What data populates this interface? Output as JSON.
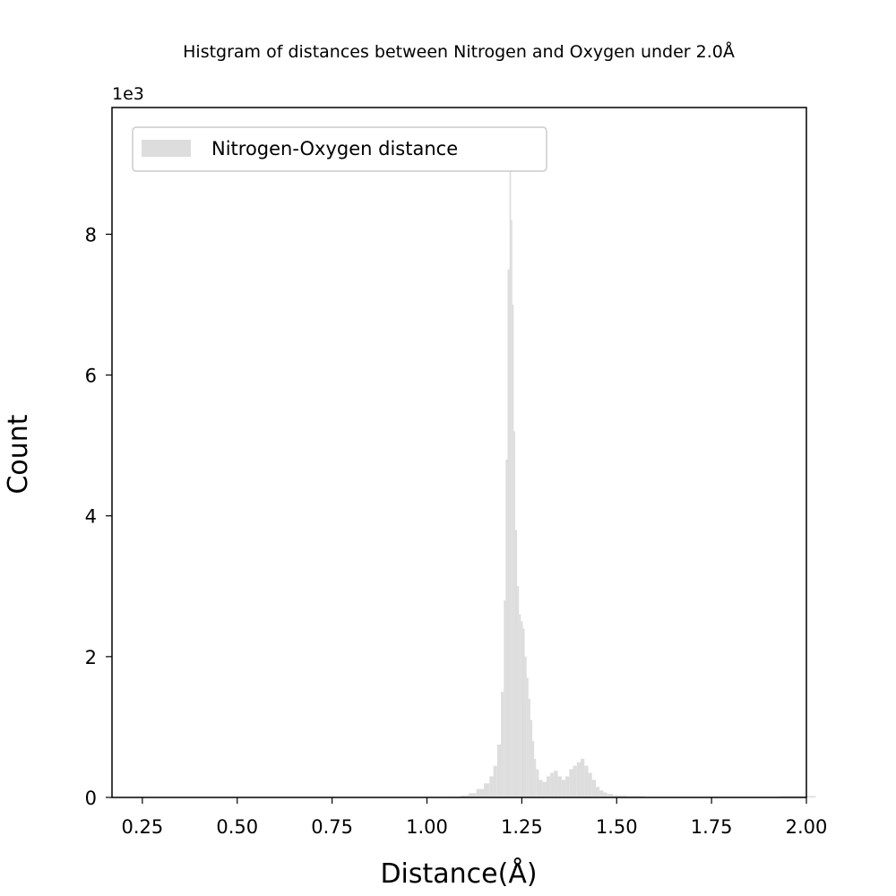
{
  "chart_data": {
    "type": "bar",
    "title": "Histgram of distances between Nitrogen and Oxygen under 2.0Å",
    "xlabel": "Distance(Å)",
    "ylabel": "Count",
    "y_multiplier_label": "1e3",
    "xlim": [
      0.17,
      2.0
    ],
    "ylim": [
      0,
      9.8
    ],
    "y_unit_scale": 1000,
    "x_ticks": [
      0.25,
      0.5,
      0.75,
      1.0,
      1.25,
      1.5,
      1.75,
      2.0
    ],
    "x_tick_labels": [
      "0.25",
      "0.50",
      "0.75",
      "1.00",
      "1.25",
      "1.50",
      "1.75",
      "2.00"
    ],
    "y_ticks": [
      0,
      2,
      4,
      6,
      8
    ],
    "y_tick_labels": [
      "0",
      "2",
      "4",
      "6",
      "8"
    ],
    "grid": false,
    "legend": {
      "placement": "top-left",
      "entries": [
        "Nitrogen-Oxygen distance"
      ]
    },
    "bar_color": "#dddddd",
    "series": [
      {
        "name": "Nitrogen-Oxygen distance",
        "x": [
          1.08,
          1.1,
          1.12,
          1.14,
          1.16,
          1.17,
          1.18,
          1.19,
          1.2,
          1.205,
          1.21,
          1.215,
          1.22,
          1.223,
          1.227,
          1.23,
          1.235,
          1.24,
          1.245,
          1.25,
          1.255,
          1.26,
          1.265,
          1.27,
          1.275,
          1.28,
          1.285,
          1.29,
          1.3,
          1.31,
          1.32,
          1.33,
          1.34,
          1.35,
          1.36,
          1.37,
          1.38,
          1.39,
          1.4,
          1.41,
          1.42,
          1.43,
          1.44,
          1.45,
          1.46,
          1.47,
          1.48,
          1.5,
          1.55,
          1.6,
          1.7,
          1.8,
          1.9,
          1.95,
          2.0
        ],
        "y": [
          0.01,
          0.03,
          0.06,
          0.12,
          0.2,
          0.3,
          0.45,
          0.75,
          1.5,
          2.8,
          4.8,
          7.5,
          8.9,
          8.2,
          7.0,
          5.2,
          3.8,
          3.0,
          2.6,
          2.5,
          2.4,
          2.0,
          1.7,
          1.4,
          1.1,
          0.8,
          0.55,
          0.4,
          0.25,
          0.22,
          0.3,
          0.35,
          0.38,
          0.3,
          0.25,
          0.3,
          0.4,
          0.45,
          0.5,
          0.55,
          0.45,
          0.35,
          0.25,
          0.15,
          0.1,
          0.07,
          0.05,
          0.03,
          0.02,
          0.01,
          0.01,
          0.01,
          0.01,
          0.02,
          0.02
        ]
      }
    ]
  }
}
